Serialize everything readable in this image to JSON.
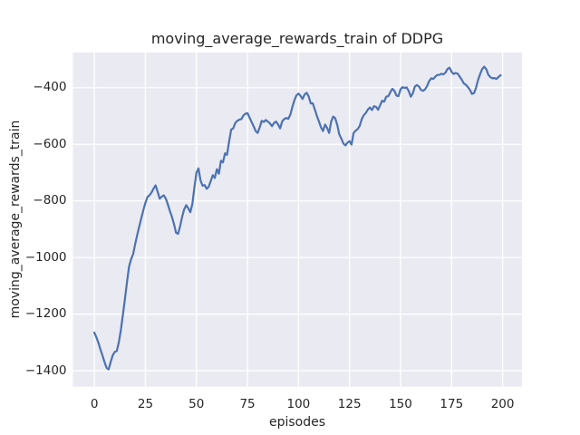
{
  "chart_data": {
    "type": "line",
    "title": "moving_average_rewards_train of DDPG",
    "xlabel": "episodes",
    "ylabel": "moving_average_rewards_train",
    "style": "seaborn-darkgrid",
    "grid": true,
    "legend_position": "none",
    "xlim": [
      -10.5,
      209.5
    ],
    "ylim": [
      -1456,
      -276
    ],
    "x_ticks": [
      0,
      25,
      50,
      75,
      100,
      125,
      150,
      175,
      200
    ],
    "x_tick_labels": [
      "0",
      "25",
      "50",
      "75",
      "100",
      "125",
      "150",
      "175",
      "200"
    ],
    "y_ticks": [
      -400,
      -600,
      -800,
      -1000,
      -1200,
      -1400
    ],
    "y_tick_labels": [
      "−400",
      "−600",
      "−800",
      "−1000",
      "−1200",
      "−1400"
    ],
    "colors": {
      "line": "#4c72b0",
      "axes_background": "#eaeaf2",
      "grid": "#ffffff",
      "text": "#262626",
      "figure_background": "#ffffff"
    },
    "series": [
      {
        "name": "moving_average_rewards_train",
        "x": [
          0,
          1,
          2,
          3,
          4,
          5,
          6,
          7,
          8,
          9,
          10,
          11,
          12,
          13,
          14,
          15,
          16,
          17,
          18,
          19,
          20,
          21,
          22,
          23,
          24,
          25,
          26,
          27,
          28,
          29,
          30,
          31,
          32,
          33,
          34,
          35,
          36,
          37,
          38,
          39,
          40,
          41,
          42,
          43,
          44,
          45,
          46,
          47,
          48,
          49,
          50,
          51,
          52,
          53,
          54,
          55,
          56,
          57,
          58,
          59,
          60,
          61,
          62,
          63,
          64,
          65,
          66,
          67,
          68,
          69,
          70,
          71,
          72,
          73,
          74,
          75,
          76,
          77,
          78,
          79,
          80,
          81,
          82,
          83,
          84,
          85,
          86,
          87,
          88,
          89,
          90,
          91,
          92,
          93,
          94,
          95,
          96,
          97,
          98,
          99,
          100,
          101,
          102,
          103,
          104,
          105,
          106,
          107,
          108,
          109,
          110,
          111,
          112,
          113,
          114,
          115,
          116,
          117,
          118,
          119,
          120,
          121,
          122,
          123,
          124,
          125,
          126,
          127,
          128,
          129,
          130,
          131,
          132,
          133,
          134,
          135,
          136,
          137,
          138,
          139,
          140,
          141,
          142,
          143,
          144,
          145,
          146,
          147,
          148,
          149,
          150,
          151,
          152,
          153,
          154,
          155,
          156,
          157,
          158,
          159,
          160,
          161,
          162,
          163,
          164,
          165,
          166,
          167,
          168,
          169,
          170,
          171,
          172,
          173,
          174,
          175,
          176,
          177,
          178,
          179,
          180,
          181,
          182,
          183,
          184,
          185,
          186,
          187,
          188,
          189,
          190,
          191,
          192,
          193,
          194,
          195,
          196,
          197,
          198,
          199
        ],
        "y": [
          -1265,
          -1282,
          -1302,
          -1325,
          -1347,
          -1370,
          -1390,
          -1395,
          -1368,
          -1345,
          -1333,
          -1330,
          -1298,
          -1255,
          -1200,
          -1145,
          -1085,
          -1032,
          -1005,
          -988,
          -952,
          -920,
          -890,
          -860,
          -832,
          -806,
          -786,
          -780,
          -770,
          -756,
          -745,
          -768,
          -792,
          -785,
          -780,
          -792,
          -812,
          -836,
          -856,
          -882,
          -912,
          -916,
          -890,
          -856,
          -830,
          -815,
          -826,
          -840,
          -810,
          -752,
          -700,
          -685,
          -728,
          -746,
          -744,
          -757,
          -750,
          -730,
          -709,
          -719,
          -688,
          -704,
          -658,
          -664,
          -632,
          -637,
          -590,
          -548,
          -544,
          -525,
          -517,
          -513,
          -511,
          -498,
          -492,
          -490,
          -505,
          -521,
          -536,
          -553,
          -560,
          -540,
          -517,
          -521,
          -514,
          -520,
          -526,
          -536,
          -525,
          -520,
          -530,
          -544,
          -519,
          -511,
          -507,
          -510,
          -495,
          -468,
          -444,
          -427,
          -421,
          -429,
          -440,
          -424,
          -418,
          -431,
          -456,
          -455,
          -477,
          -499,
          -519,
          -540,
          -553,
          -530,
          -542,
          -560,
          -520,
          -502,
          -508,
          -532,
          -565,
          -580,
          -597,
          -604,
          -594,
          -589,
          -601,
          -560,
          -552,
          -546,
          -535,
          -511,
          -497,
          -489,
          -477,
          -470,
          -479,
          -465,
          -468,
          -478,
          -462,
          -446,
          -449,
          -432,
          -430,
          -416,
          -404,
          -411,
          -428,
          -430,
          -406,
          -398,
          -401,
          -399,
          -412,
          -432,
          -420,
          -396,
          -391,
          -396,
          -408,
          -411,
          -406,
          -394,
          -377,
          -367,
          -369,
          -361,
          -355,
          -355,
          -351,
          -353,
          -347,
          -334,
          -329,
          -344,
          -352,
          -348,
          -351,
          -361,
          -372,
          -385,
          -390,
          -398,
          -408,
          -422,
          -419,
          -400,
          -372,
          -352,
          -334,
          -326,
          -335,
          -354,
          -363,
          -367,
          -366,
          -369,
          -362,
          -356
        ]
      }
    ]
  }
}
